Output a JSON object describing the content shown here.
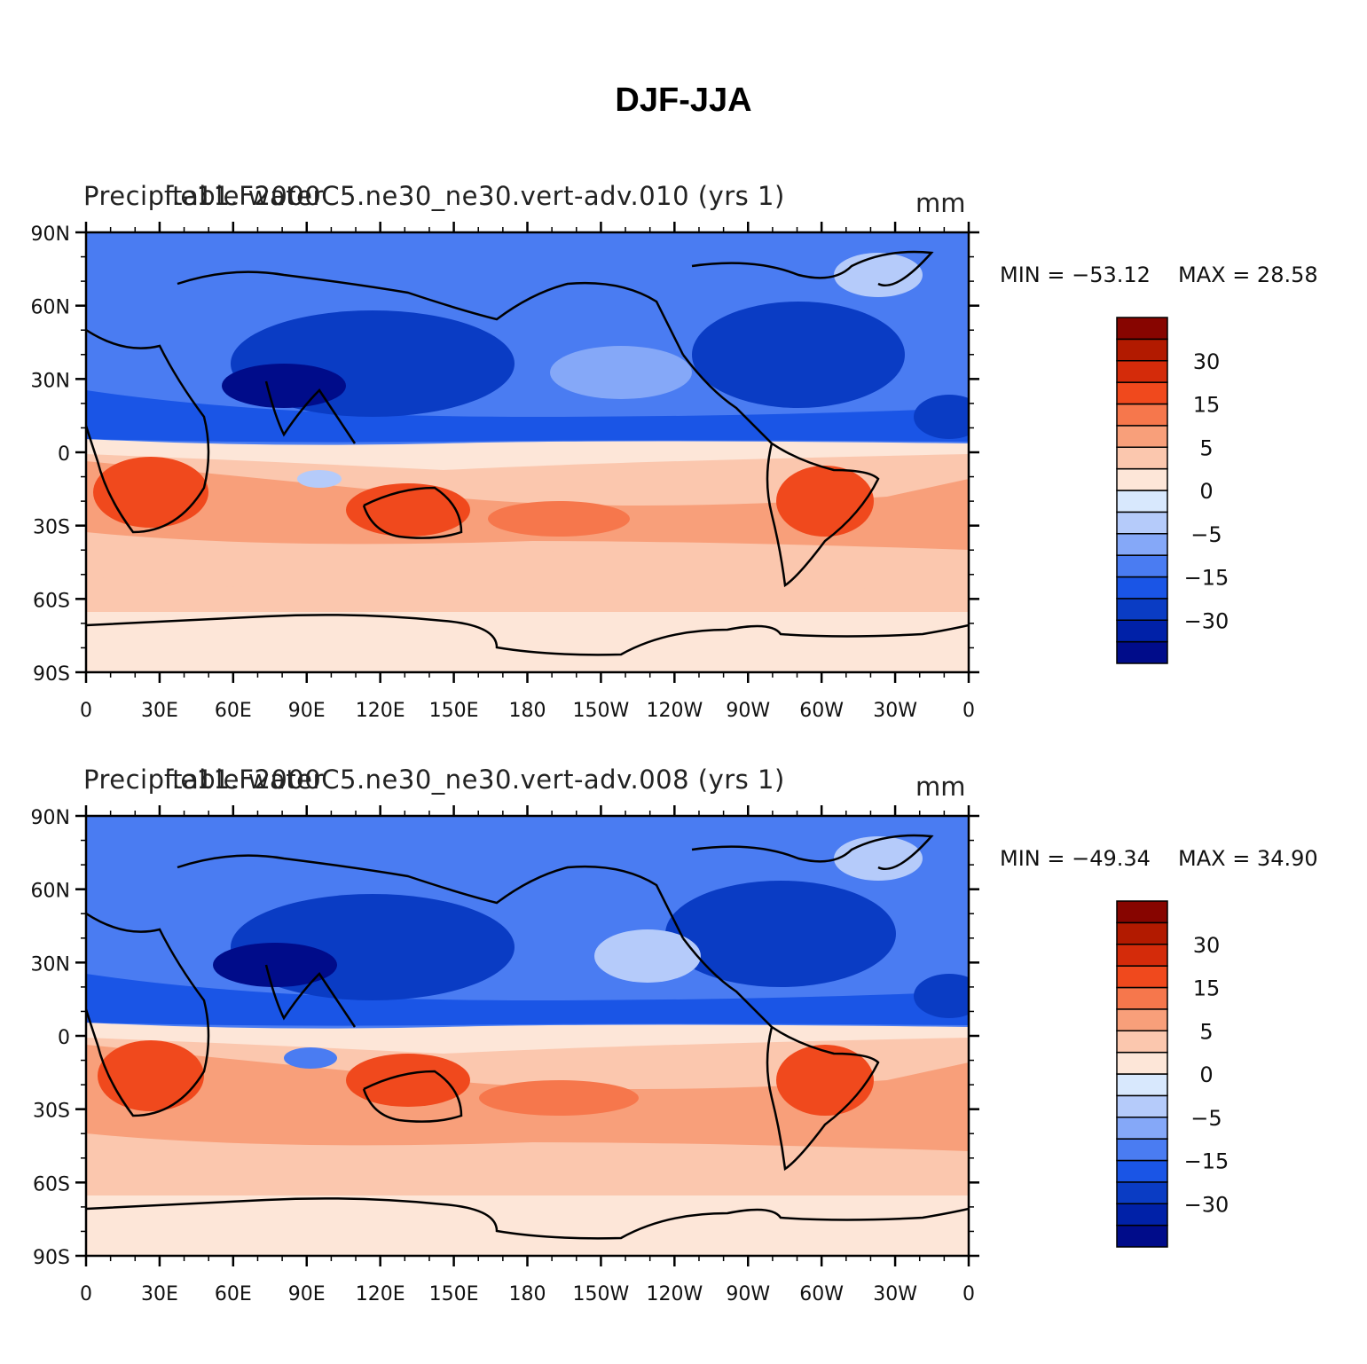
{
  "figure": {
    "title": "DJF-JJA"
  },
  "panels": [
    {
      "title_left": "Precipitable water",
      "title_center": "f.e11.F2000C5.ne30_ne30.vert-adv.010 (yrs  1)",
      "units": "mm",
      "min_label": "MIN = −53.12",
      "max_label": "MAX =   28.58"
    },
    {
      "title_left": "Precipitable water",
      "title_center": "f.e11.F2000C5.ne30_ne30.vert-adv.008 (yrs  1)",
      "units": "mm",
      "min_label": "MIN = −49.34",
      "max_label": "MAX =   34.90"
    }
  ],
  "axes": {
    "lat_ticks": [
      "90N",
      "60N",
      "30N",
      "0",
      "30S",
      "60S",
      "90S"
    ],
    "lon_ticks": [
      "0",
      "30E",
      "60E",
      "90E",
      "120E",
      "150E",
      "180",
      "150W",
      "120W",
      "90W",
      "60W",
      "30W",
      "0"
    ]
  },
  "colorbar": {
    "colors": [
      "#000c8a",
      "#0021a8",
      "#0a3cc4",
      "#1a55e6",
      "#4a7cf2",
      "#85a8f8",
      "#b5cbfa",
      "#d8e8fd",
      "#fde6d8",
      "#fbc7ae",
      "#f89f7a",
      "#f6774c",
      "#f0491d",
      "#d42b0a",
      "#b21a00",
      "#870500"
    ],
    "labels": [
      "−30",
      "−15",
      "−5",
      "0",
      "5",
      "15",
      "30"
    ]
  }
}
